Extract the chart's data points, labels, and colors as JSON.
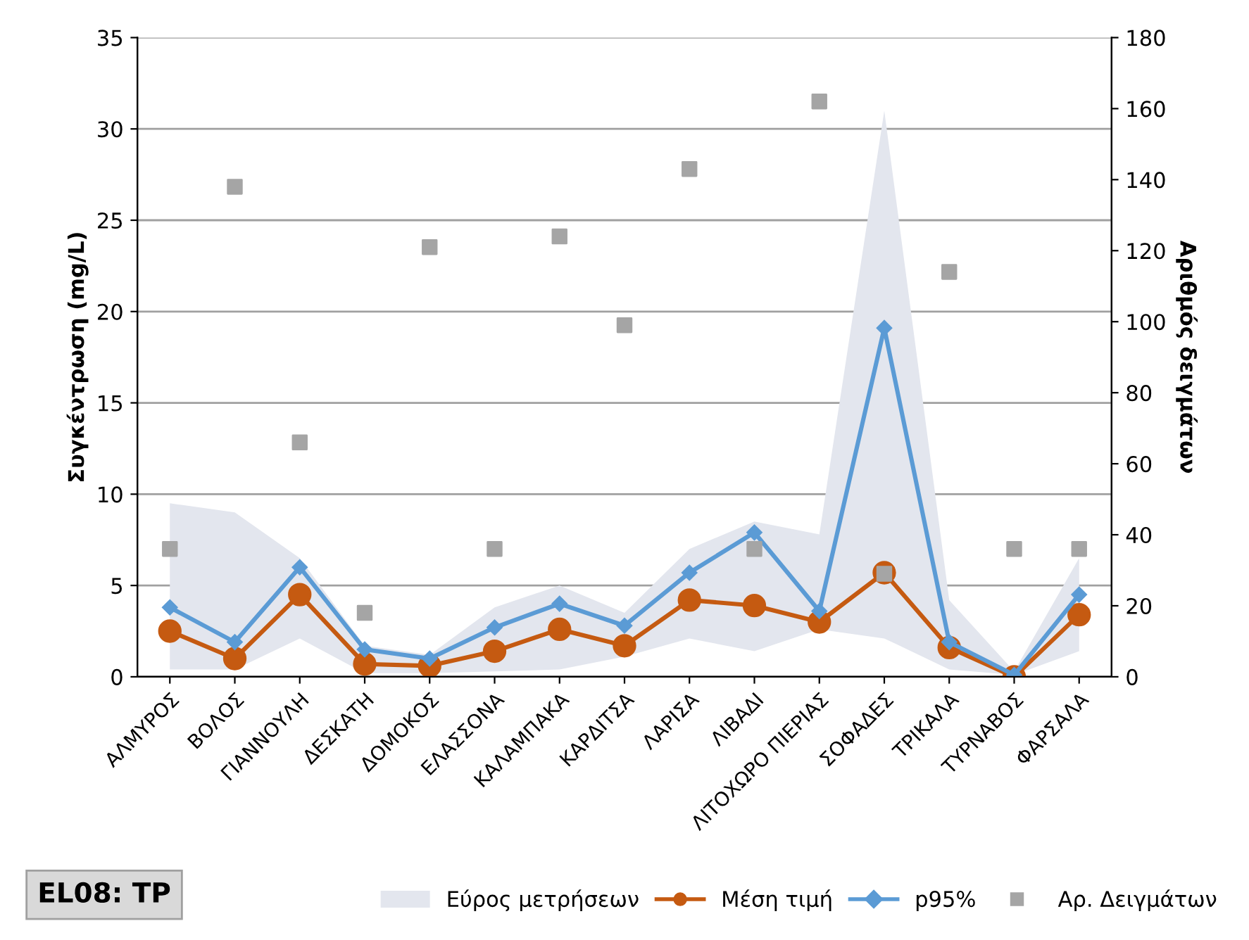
{
  "chart_data": {
    "type": "line",
    "title": "EL08: TP",
    "ylabel": "Συγκέντρωση (mg/L)",
    "y2label": "Αριθμός δειγμάτων",
    "categories": [
      "ΑΛΜΥΡΟΣ",
      "ΒΟΛΟΣ",
      "ΓΙΑΝΝΟΥΛΗ",
      "ΔΕΣΚΑΤΗ",
      "ΔΟΜΟΚΟΣ",
      "ΕΛΑΣΣΟΝΑ",
      "ΚΑΛΑΜΠΑΚΑ",
      "ΚΑΡΔΙΤΣΑ",
      "ΛΑΡΙΣΑ",
      "ΛΙΒΑΔΙ",
      "ΛΙΤΟΧΩΡΟ ΠΙΕΡΙΑΣ",
      "ΣΟΦΑΔΕΣ",
      "ΤΡΙΚΑΛΑ",
      "ΤΥΡΝΑΒΟΣ",
      "ΦΑΡΣΑΛΑ"
    ],
    "series": [
      {
        "name": "Εύρος μετρήσεων",
        "color": "#e3e6ee",
        "values": [
          null,
          null,
          null,
          null,
          null,
          null,
          null,
          null,
          null,
          null,
          null,
          null,
          null,
          null,
          null
        ],
        "upper": [
          9.5,
          9.0,
          6.5,
          1.7,
          1.2,
          3.8,
          5.0,
          3.5,
          7.0,
          8.5,
          7.8,
          31.0,
          4.2,
          0.3,
          6.5
        ],
        "lower": [
          0.4,
          0.4,
          2.1,
          0.2,
          0.2,
          0.3,
          0.4,
          1.1,
          2.1,
          1.4,
          2.6,
          2.1,
          0.4,
          0.1,
          1.4
        ]
      },
      {
        "name": "Μέση τιμή",
        "type": "line",
        "color": "#c55a11",
        "marker": "circle",
        "values": [
          2.5,
          1.0,
          4.5,
          0.7,
          0.6,
          1.4,
          2.6,
          1.7,
          4.2,
          3.9,
          3.0,
          5.7,
          1.6,
          0.0,
          3.4
        ]
      },
      {
        "name": "p95%",
        "type": "line",
        "color": "#5b9bd5",
        "marker": "diamond",
        "values": [
          3.8,
          1.9,
          6.0,
          1.5,
          1.0,
          2.7,
          4.0,
          2.8,
          5.7,
          7.9,
          3.6,
          19.1,
          1.9,
          0.1,
          4.5
        ]
      },
      {
        "name": "Αρ. Δειγμάτων",
        "type": "scatter",
        "axis": "y2",
        "color": "#a5a5a5",
        "marker": "square",
        "values": [
          36,
          138,
          66,
          18,
          121,
          36,
          124,
          99,
          143,
          36,
          162,
          29,
          114,
          36,
          36
        ]
      }
    ],
    "ylim": [
      0,
      35
    ],
    "yticks": [
      0,
      5,
      10,
      15,
      20,
      25,
      30,
      35
    ],
    "y2lim": [
      0,
      180
    ],
    "y2ticks": [
      0,
      20,
      40,
      60,
      80,
      100,
      120,
      140,
      160,
      180
    ],
    "grid": "y",
    "legend": "bottom"
  }
}
